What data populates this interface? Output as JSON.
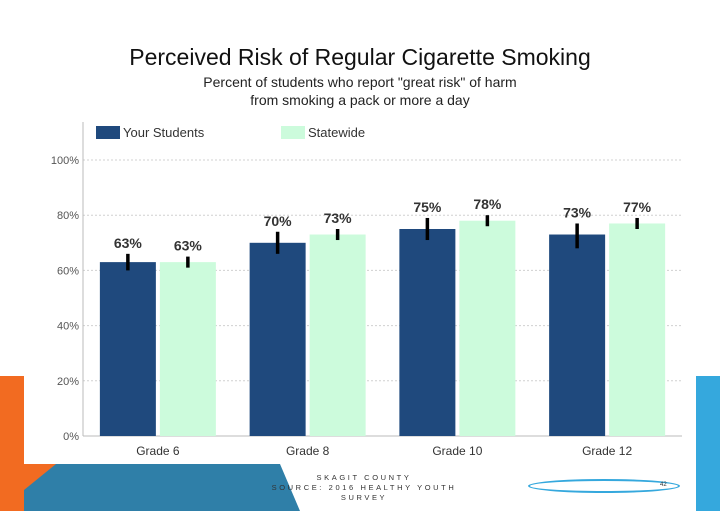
{
  "slide": {
    "title": "Perceived Risk of Regular Cigarette Smoking",
    "subtitle_line1": "Percent of students who report \"great risk\" of harm",
    "subtitle_line2": "from smoking a pack or more a day",
    "footer_line1": "SKAGIT COUNTY",
    "footer_line2": "SOURCE: 2016 HEALTHY YOUTH SURVEY",
    "page_number": "42"
  },
  "colors": {
    "your_students": "#1f497d",
    "statewide": "#ccfbdc",
    "error_bar": "#000000",
    "accent_orange": "#f26b21",
    "accent_blue": "#35a8dd"
  },
  "chart_data": {
    "type": "bar",
    "categories": [
      "Grade 6",
      "Grade 8",
      "Grade 10",
      "Grade 12"
    ],
    "series": [
      {
        "name": "Your Students",
        "values": [
          63,
          70,
          75,
          73
        ],
        "labels": [
          "63%",
          "70%",
          "75%",
          "73%"
        ],
        "error_low": [
          60,
          66,
          71,
          68
        ],
        "error_high": [
          66,
          74,
          79,
          77
        ]
      },
      {
        "name": "Statewide",
        "values": [
          63,
          73,
          78,
          77
        ],
        "labels": [
          "63%",
          "73%",
          "78%",
          "77%"
        ],
        "error_low": [
          61,
          71,
          76,
          75
        ],
        "error_high": [
          65,
          75,
          80,
          79
        ]
      }
    ],
    "ylim": [
      0,
      100
    ],
    "yticks": [
      0,
      20,
      40,
      60,
      80,
      100
    ],
    "ytick_labels": [
      "0%",
      "20%",
      "40%",
      "60%",
      "80%",
      "100%"
    ],
    "grid": true,
    "legend_position": "top-left",
    "error_bars": true
  }
}
